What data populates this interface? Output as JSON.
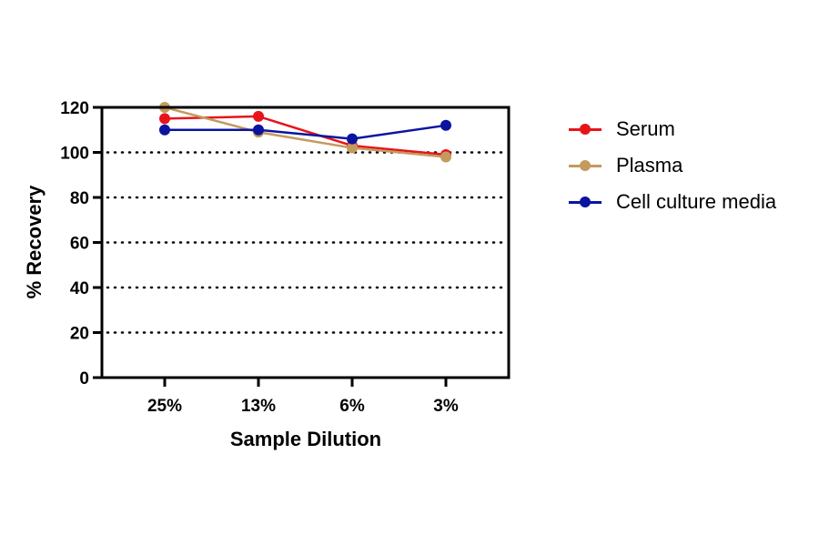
{
  "chart_data": {
    "type": "line",
    "xlabel": "Sample Dilution",
    "ylabel": "% Recovery",
    "categories": [
      "25%",
      "13%",
      "6%",
      "3%"
    ],
    "ylim": [
      0,
      120
    ],
    "yticks": [
      0,
      20,
      40,
      60,
      80,
      100,
      120
    ],
    "grid": "dotted horizontal",
    "legend": "right",
    "series": [
      {
        "name": "Serum",
        "color": "#e8141b",
        "values": [
          115,
          116,
          103,
          99
        ]
      },
      {
        "name": "Plasma",
        "color": "#c59a5e",
        "values": [
          120,
          109,
          102,
          98
        ]
      },
      {
        "name": "Cell culture media",
        "color": "#0a14a0",
        "values": [
          110,
          110,
          106,
          112
        ]
      }
    ]
  }
}
